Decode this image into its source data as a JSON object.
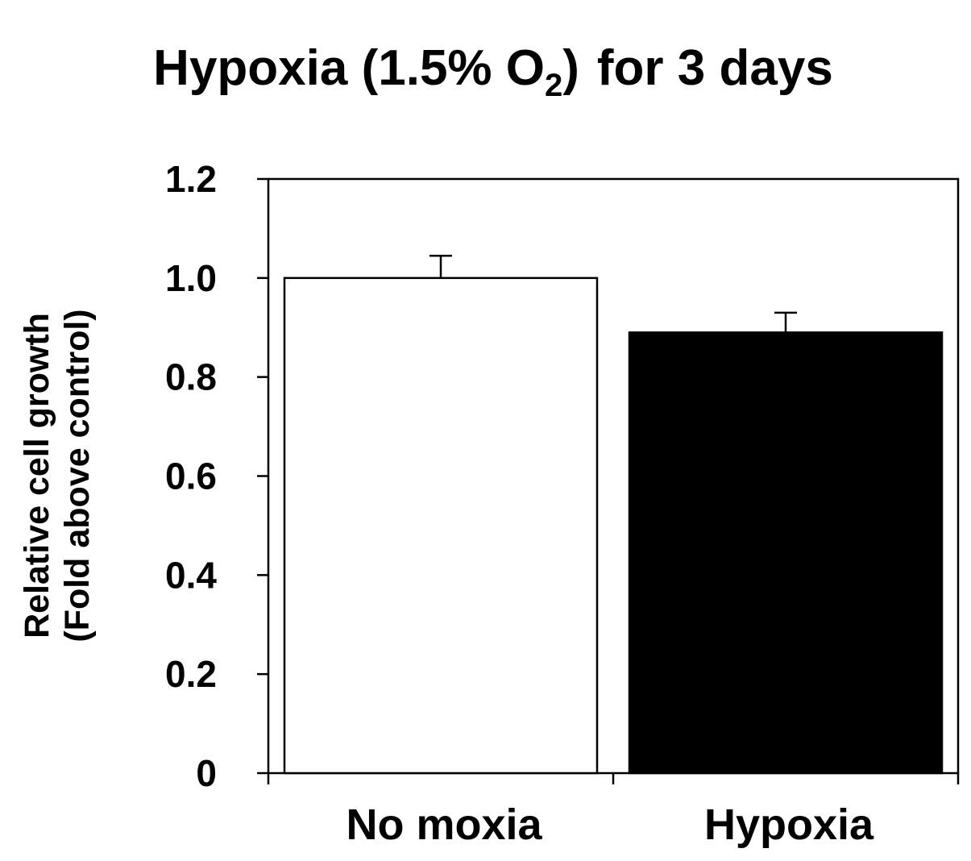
{
  "chart_data": {
    "type": "bar",
    "title": {
      "main": "Hypoxia (1.5% O",
      "subscript": "2",
      "after": ")",
      "tail": "for 3 days"
    },
    "xlabel": "",
    "ylabel": [
      "Relative cell growth",
      "(Fold above control)"
    ],
    "ylim": [
      0,
      1.2
    ],
    "yticks": [
      {
        "value": 0,
        "label": "0"
      },
      {
        "value": 0.2,
        "label": "0.2"
      },
      {
        "value": 0.4,
        "label": "0.4"
      },
      {
        "value": 0.6,
        "label": "0.6"
      },
      {
        "value": 0.8,
        "label": "0.8"
      },
      {
        "value": 1.0,
        "label": "1.0"
      },
      {
        "value": 1.2,
        "label": "1.2"
      }
    ],
    "categories": [
      "No moxia",
      "Hypoxia"
    ],
    "values": [
      1.0,
      0.89
    ],
    "errors": [
      0.045,
      0.04
    ],
    "bar_colors": [
      "#ffffff",
      "#000000"
    ],
    "bar_edge_color": "#000000",
    "grid": false,
    "legend": "none"
  }
}
